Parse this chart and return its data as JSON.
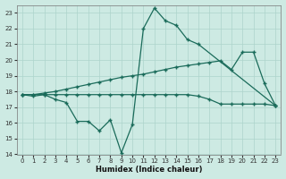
{
  "xlabel": "Humidex (Indice chaleur)",
  "bg_color": "#cdeae3",
  "grid_color": "#add4cc",
  "line_color": "#1a6b5a",
  "xlim": [
    -0.5,
    23.5
  ],
  "ylim": [
    14,
    23.5
  ],
  "xticks": [
    0,
    1,
    2,
    3,
    4,
    5,
    6,
    7,
    8,
    9,
    10,
    11,
    12,
    13,
    14,
    15,
    16,
    17,
    18,
    19,
    20,
    21,
    22,
    23
  ],
  "yticks": [
    14,
    15,
    16,
    17,
    18,
    19,
    20,
    21,
    22,
    23
  ],
  "line1_x": [
    0,
    1,
    2,
    3,
    4,
    5,
    6,
    7,
    8,
    9,
    10,
    11,
    12,
    13,
    14,
    15,
    16,
    23
  ],
  "line1_y": [
    17.8,
    17.7,
    17.8,
    17.5,
    17.3,
    16.1,
    16.1,
    15.5,
    16.2,
    14.1,
    15.9,
    22.0,
    23.3,
    22.5,
    22.2,
    21.3,
    21.0,
    17.1
  ],
  "line2_x": [
    0,
    1,
    2,
    3,
    4,
    5,
    6,
    7,
    8,
    9,
    10,
    11,
    12,
    13,
    14,
    15,
    16,
    17,
    18,
    19,
    20,
    21,
    22,
    23
  ],
  "line2_y": [
    17.8,
    17.8,
    17.9,
    18.0,
    18.15,
    18.3,
    18.45,
    18.6,
    18.75,
    18.9,
    19.0,
    19.1,
    19.25,
    19.4,
    19.55,
    19.65,
    19.75,
    19.85,
    19.95,
    19.4,
    20.5,
    20.5,
    18.5,
    17.1
  ],
  "line3_x": [
    0,
    1,
    2,
    3,
    4,
    5,
    6,
    7,
    8,
    9,
    10,
    11,
    12,
    13,
    14,
    15,
    16,
    17,
    18,
    19,
    20,
    21,
    22,
    23
  ],
  "line3_y": [
    17.8,
    17.8,
    17.8,
    17.8,
    17.8,
    17.8,
    17.8,
    17.8,
    17.8,
    17.8,
    17.8,
    17.8,
    17.8,
    17.8,
    17.8,
    17.8,
    17.7,
    17.5,
    17.2,
    17.2,
    17.2,
    17.2,
    17.2,
    17.1
  ]
}
